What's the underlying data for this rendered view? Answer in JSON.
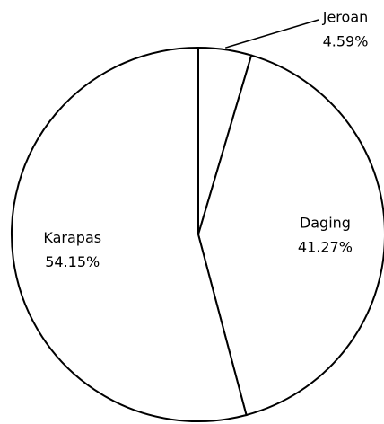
{
  "chart_data": {
    "type": "pie",
    "categories": [
      "Jeroan",
      "Daging",
      "Karapas"
    ],
    "values": [
      4.59,
      41.27,
      54.15
    ],
    "value_labels": [
      "4.59%",
      "41.27%",
      "54.15%"
    ],
    "color": "#ffffff"
  }
}
